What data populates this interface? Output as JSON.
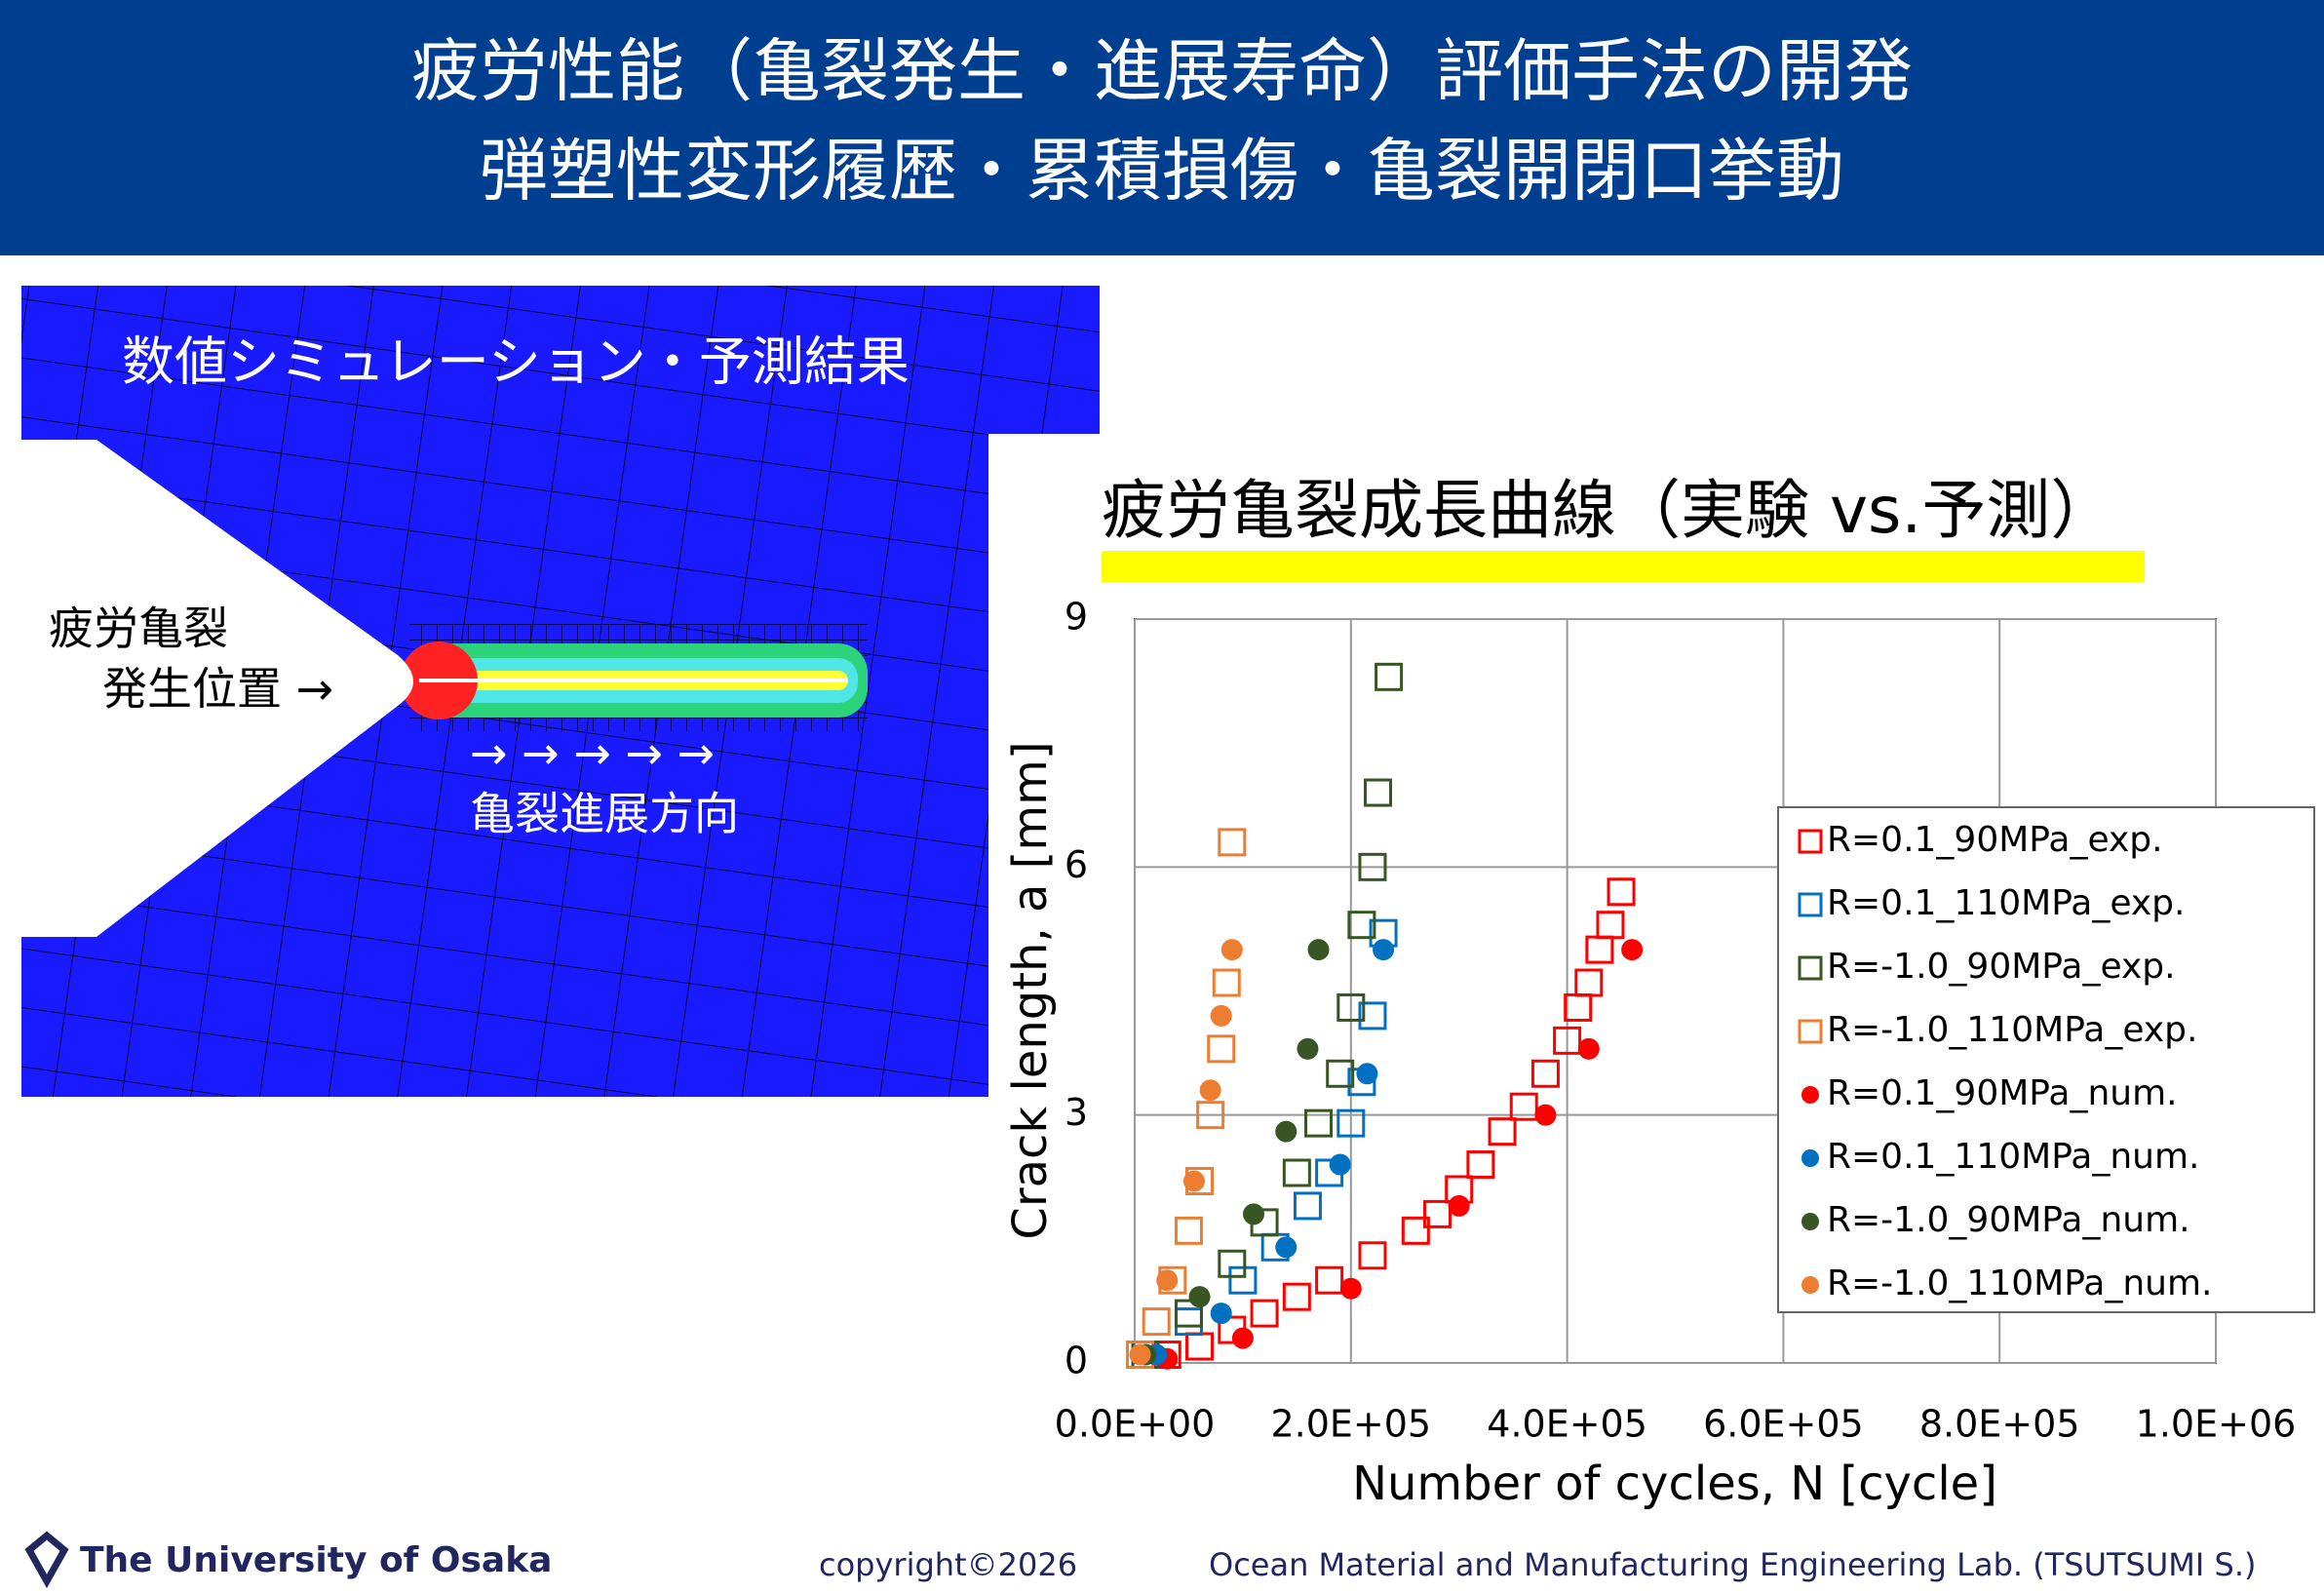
{
  "header": {
    "line1": "疲労性能（亀裂発生・進展寿命）評価手法の開発",
    "line2": "弾塑性変形履歴・累積損傷・亀裂開閉口挙動"
  },
  "simulation": {
    "label": "数値シミュレーション・予測結果",
    "initiation_line1": "疲労亀裂",
    "initiation_line2": "発生位置 →",
    "arrows": "→ → → → →",
    "direction": "亀裂進展方向"
  },
  "chart_data": {
    "type": "scatter",
    "title": "疲労亀裂成長曲線（実験 vs.予測）",
    "x_label": "Number of cycles, N [cycle]",
    "y_label": "Crack length, a [mm]",
    "xlim": [
      0,
      1000000
    ],
    "ylim": [
      0,
      9
    ],
    "xticks": [
      {
        "value": 0,
        "label": "0.0E+00"
      },
      {
        "value": 200000,
        "label": "2.0E+05"
      },
      {
        "value": 400000,
        "label": "4.0E+05"
      },
      {
        "value": 600000,
        "label": "6.0E+05"
      },
      {
        "value": 800000,
        "label": "8.0E+05"
      },
      {
        "value": 1000000,
        "label": "1.0E+06"
      }
    ],
    "yticks": [
      0,
      3,
      6,
      9
    ],
    "grid": true,
    "legend": "right",
    "series": [
      {
        "name": "R=0.1_90MPa_exp.",
        "color": "#ff0000",
        "marker": "square",
        "x": [
          30000,
          60000,
          90000,
          120000,
          150000,
          180000,
          220000,
          260000,
          280000,
          300000,
          320000,
          340000,
          360000,
          380000,
          400000,
          410000,
          420000,
          430000,
          440000,
          450000
        ],
        "values": [
          0.1,
          0.2,
          0.4,
          0.6,
          0.8,
          1.0,
          1.3,
          1.6,
          1.8,
          2.1,
          2.4,
          2.8,
          3.1,
          3.5,
          3.9,
          4.3,
          4.6,
          5.0,
          5.3,
          5.7
        ]
      },
      {
        "name": "R=0.1_110MPa_exp.",
        "color": "#0070c0",
        "marker": "square",
        "x": [
          10000,
          50000,
          100000,
          130000,
          160000,
          180000,
          200000,
          210000,
          220000,
          230000
        ],
        "values": [
          0.1,
          0.5,
          1.0,
          1.4,
          1.9,
          2.3,
          2.9,
          3.4,
          4.2,
          5.2
        ]
      },
      {
        "name": "R=-1.0_90MPa_exp.",
        "color": "#375623",
        "marker": "square",
        "x": [
          10000,
          50000,
          90000,
          120000,
          150000,
          170000,
          190000,
          200000,
          210000,
          220000,
          225000,
          235000
        ],
        "values": [
          0.1,
          0.6,
          1.2,
          1.7,
          2.3,
          2.9,
          3.5,
          4.3,
          5.3,
          6.0,
          6.9,
          8.3
        ]
      },
      {
        "name": "R=-1.0_110MPa_exp.",
        "color": "#ed7d31",
        "marker": "square",
        "x": [
          5000,
          20000,
          35000,
          50000,
          60000,
          70000,
          80000,
          85000,
          90000
        ],
        "values": [
          0.1,
          0.5,
          1.0,
          1.6,
          2.2,
          3.0,
          3.8,
          4.6,
          6.3
        ]
      },
      {
        "name": "R=0.1_90MPa_num.",
        "color": "#ff0000",
        "marker": "circle",
        "x": [
          30000,
          100000,
          200000,
          300000,
          380000,
          420000,
          460000
        ],
        "values": [
          0.05,
          0.3,
          0.9,
          1.9,
          3.0,
          3.8,
          5.0
        ]
      },
      {
        "name": "R=0.1_110MPa_num.",
        "color": "#0070c0",
        "marker": "circle",
        "x": [
          20000,
          80000,
          140000,
          190000,
          215000,
          230000
        ],
        "values": [
          0.1,
          0.6,
          1.4,
          2.4,
          3.5,
          5.0
        ]
      },
      {
        "name": "R=-1.0_90MPa_num.",
        "color": "#375623",
        "marker": "circle",
        "x": [
          10000,
          60000,
          110000,
          140000,
          160000,
          170000
        ],
        "values": [
          0.1,
          0.8,
          1.8,
          2.8,
          3.8,
          5.0
        ]
      },
      {
        "name": "R=-1.0_110MPa_num.",
        "color": "#ed7d31",
        "marker": "circle",
        "x": [
          5000,
          30000,
          55000,
          70000,
          80000,
          90000
        ],
        "values": [
          0.1,
          1.0,
          2.2,
          3.3,
          4.2,
          5.0
        ]
      }
    ]
  },
  "footer": {
    "logo": "The University of Osaka",
    "copyright": "copyright©2026",
    "lab": "Ocean Material and Manufacturing Engineering Lab. (TSUTSUMI S.)"
  }
}
